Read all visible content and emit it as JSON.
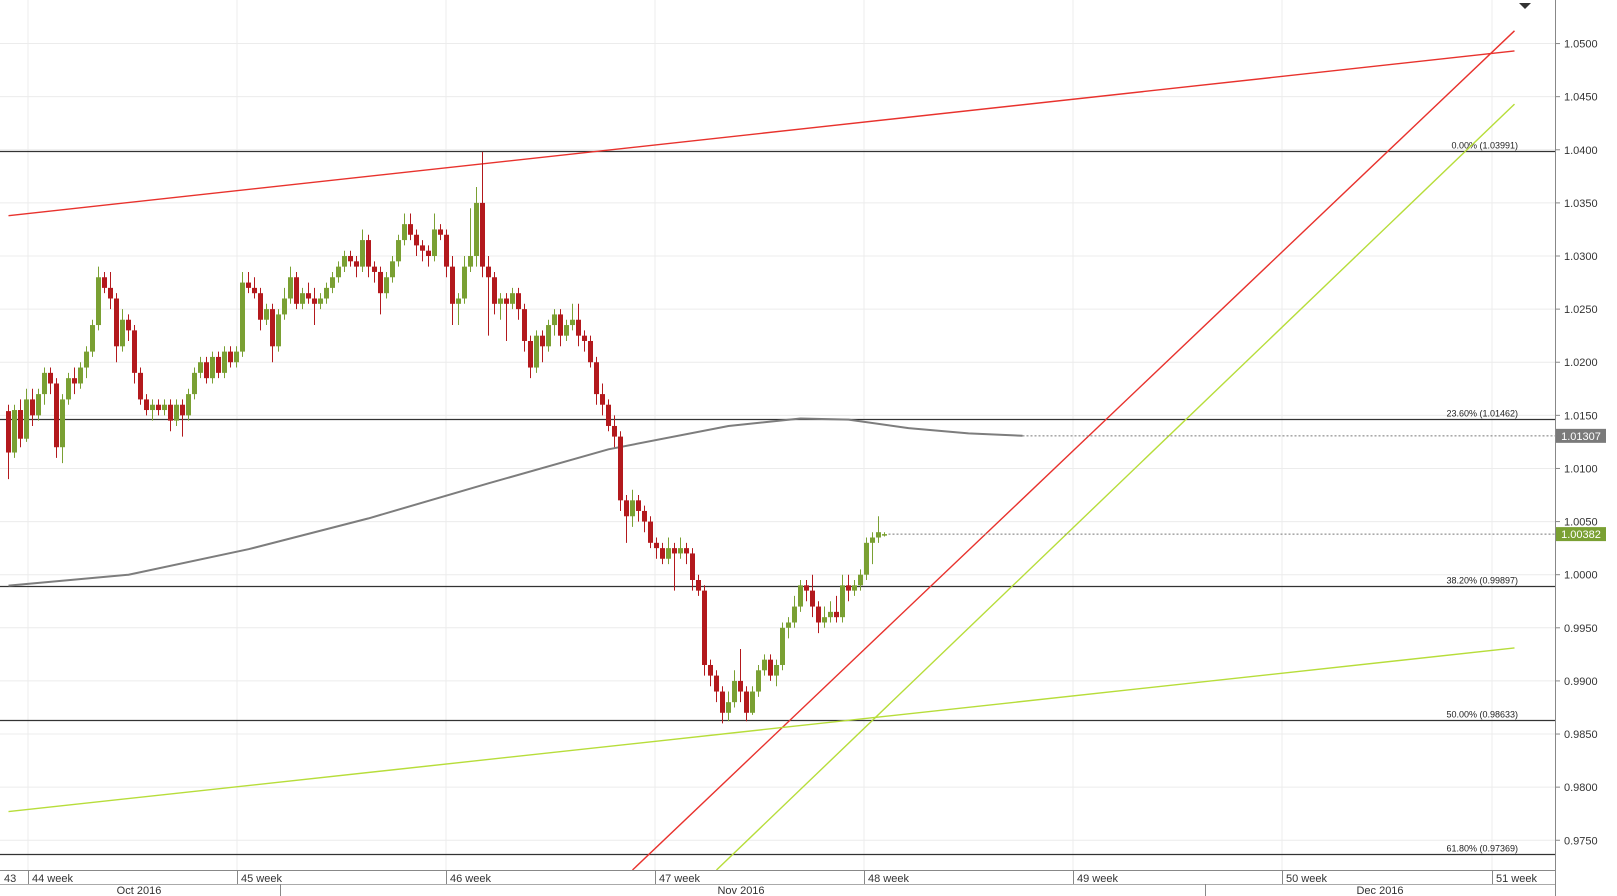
{
  "chart_data": {
    "type": "candlestick",
    "price_axis": {
      "ylim": [
        0.9722,
        1.0541
      ],
      "ticks": [
        "1.0500",
        "1.0450",
        "1.0400",
        "1.0350",
        "1.0300",
        "1.0250",
        "1.0200",
        "1.0150",
        "1.0100",
        "1.0050",
        "1.0000",
        "0.9950",
        "0.9900",
        "0.9850",
        "0.9800",
        "0.9750"
      ]
    },
    "fib_levels": [
      {
        "label": "0.00% (1.03991)",
        "value": 1.03991
      },
      {
        "label": "23.60% (1.01462)",
        "value": 1.01462
      },
      {
        "label": "38.20% (0.99897)",
        "value": 0.99897
      },
      {
        "label": "50.00% (0.98633)",
        "value": 0.98633
      },
      {
        "label": "61.80% (0.97369)",
        "value": 0.97369
      }
    ],
    "badges": [
      {
        "label": "1.01307",
        "value": 1.01307,
        "color": "#7a7a7a"
      },
      {
        "label": "1.00382",
        "value": 1.00382,
        "color": "#7aa033"
      }
    ],
    "week_labels": [
      "43",
      "44 week",
      "45 week",
      "46 week",
      "47 week",
      "48 week",
      "49 week",
      "50 week",
      "51 week"
    ],
    "month_labels": [
      "Oct 2016",
      "Nov 2016",
      "Dec 2016"
    ],
    "moving_average": [
      [
        0,
        0.99897
      ],
      [
        20,
        1.0
      ],
      [
        40,
        1.0024
      ],
      [
        60,
        1.0053
      ],
      [
        80,
        1.0086
      ],
      [
        100,
        1.0118
      ],
      [
        120,
        1.014
      ],
      [
        132,
        1.0147
      ],
      [
        140,
        1.0146
      ],
      [
        150,
        1.0138
      ],
      [
        160,
        1.0133
      ],
      [
        169,
        1.01307
      ]
    ],
    "trendlines": [
      {
        "color": "#e8322d",
        "p1": [
          0,
          1.0338
        ],
        "p2": [
          251,
          1.0493
        ]
      },
      {
        "color": "#e8322d",
        "p1": [
          104,
          0.9722
        ],
        "p2": [
          251,
          1.0512
        ]
      },
      {
        "color": "#b7dd3a",
        "p1": [
          0,
          0.9777
        ],
        "p2": [
          251,
          0.9931
        ]
      },
      {
        "color": "#b7dd3a",
        "p1": [
          118,
          0.9722
        ],
        "p2": [
          251,
          1.0443
        ]
      }
    ],
    "candles": [
      [
        0,
        1.0154,
        1.016,
        1.009,
        1.0115
      ],
      [
        1,
        1.0115,
        1.016,
        1.011,
        1.0155
      ],
      [
        2,
        1.0155,
        1.0165,
        1.012,
        1.0128
      ],
      [
        3,
        1.0128,
        1.0175,
        1.0125,
        1.0165
      ],
      [
        4,
        1.0165,
        1.0175,
        1.014,
        1.015
      ],
      [
        5,
        1.015,
        1.0175,
        1.0145,
        1.017
      ],
      [
        6,
        1.017,
        1.0195,
        1.016,
        1.019
      ],
      [
        7,
        1.019,
        1.0195,
        1.017,
        1.018
      ],
      [
        8,
        1.018,
        1.0185,
        1.011,
        1.012
      ],
      [
        9,
        1.012,
        1.017,
        1.0105,
        1.0165
      ],
      [
        10,
        1.0165,
        1.019,
        1.016,
        1.0185
      ],
      [
        11,
        1.0185,
        1.0195,
        1.017,
        1.018
      ],
      [
        12,
        1.018,
        1.02,
        1.0175,
        1.0195
      ],
      [
        13,
        1.0195,
        1.0215,
        1.0185,
        1.021
      ],
      [
        14,
        1.021,
        1.024,
        1.0205,
        1.0235
      ],
      [
        15,
        1.0235,
        1.029,
        1.023,
        1.028
      ],
      [
        16,
        1.028,
        1.0285,
        1.0265,
        1.027
      ],
      [
        17,
        1.027,
        1.0285,
        1.025,
        1.026
      ],
      [
        18,
        1.026,
        1.0265,
        1.02,
        1.0215
      ],
      [
        19,
        1.0215,
        1.025,
        1.021,
        1.024
      ],
      [
        20,
        1.024,
        1.0245,
        1.022,
        1.023
      ],
      [
        21,
        1.023,
        1.0235,
        1.018,
        1.019
      ],
      [
        22,
        1.019,
        1.0195,
        1.016,
        1.0165
      ],
      [
        23,
        1.0165,
        1.017,
        1.015,
        1.0155
      ],
      [
        24,
        1.0155,
        1.0165,
        1.0145,
        1.016
      ],
      [
        25,
        1.016,
        1.0165,
        1.015,
        1.0155
      ],
      [
        26,
        1.0155,
        1.0165,
        1.015,
        1.016
      ],
      [
        27,
        1.016,
        1.0165,
        1.0135,
        1.0145
      ],
      [
        28,
        1.0145,
        1.0165,
        1.014,
        1.016
      ],
      [
        29,
        1.016,
        1.0165,
        1.013,
        1.015
      ],
      [
        30,
        1.015,
        1.0175,
        1.0145,
        1.017
      ],
      [
        31,
        1.017,
        1.0195,
        1.0165,
        1.019
      ],
      [
        32,
        1.019,
        1.0205,
        1.0185,
        1.02
      ],
      [
        33,
        1.02,
        1.0205,
        1.018,
        1.0185
      ],
      [
        34,
        1.0185,
        1.021,
        1.018,
        1.0205
      ],
      [
        35,
        1.0205,
        1.021,
        1.0185,
        1.019
      ],
      [
        36,
        1.019,
        1.0215,
        1.0185,
        1.021
      ],
      [
        37,
        1.021,
        1.0215,
        1.0195,
        1.02
      ],
      [
        38,
        1.02,
        1.0215,
        1.0195,
        1.021
      ],
      [
        39,
        1.021,
        1.0285,
        1.0205,
        1.0275
      ],
      [
        40,
        1.0275,
        1.0285,
        1.0265,
        1.027
      ],
      [
        41,
        1.027,
        1.028,
        1.026,
        1.0265
      ],
      [
        42,
        1.0265,
        1.027,
        1.023,
        1.024
      ],
      [
        43,
        1.024,
        1.0255,
        1.0235,
        1.025
      ],
      [
        44,
        1.025,
        1.0255,
        1.02,
        1.0215
      ],
      [
        45,
        1.0215,
        1.025,
        1.021,
        1.0245
      ],
      [
        46,
        1.0245,
        1.027,
        1.024,
        1.026
      ],
      [
        47,
        1.026,
        1.029,
        1.0255,
        1.028
      ],
      [
        48,
        1.028,
        1.0285,
        1.025,
        1.0255
      ],
      [
        49,
        1.0255,
        1.027,
        1.025,
        1.0265
      ],
      [
        50,
        1.0265,
        1.0275,
        1.0255,
        1.026
      ],
      [
        51,
        1.026,
        1.027,
        1.0235,
        1.0255
      ],
      [
        52,
        1.0255,
        1.0265,
        1.025,
        1.026
      ],
      [
        53,
        1.026,
        1.0275,
        1.0255,
        1.027
      ],
      [
        54,
        1.027,
        1.0285,
        1.0265,
        1.028
      ],
      [
        55,
        1.028,
        1.0295,
        1.0275,
        1.029
      ],
      [
        56,
        1.029,
        1.0305,
        1.0285,
        1.03
      ],
      [
        57,
        1.03,
        1.0305,
        1.029,
        1.0295
      ],
      [
        58,
        1.0295,
        1.03,
        1.028,
        1.029
      ],
      [
        59,
        1.029,
        1.0325,
        1.0285,
        1.0315
      ],
      [
        60,
        1.0315,
        1.032,
        1.028,
        1.029
      ],
      [
        61,
        1.029,
        1.0295,
        1.0275,
        1.0285
      ],
      [
        62,
        1.0285,
        1.029,
        1.0245,
        1.0265
      ],
      [
        63,
        1.0265,
        1.0285,
        1.026,
        1.028
      ],
      [
        64,
        1.028,
        1.03,
        1.0275,
        1.0295
      ],
      [
        65,
        1.0295,
        1.032,
        1.029,
        1.0315
      ],
      [
        66,
        1.0315,
        1.034,
        1.031,
        1.033
      ],
      [
        67,
        1.033,
        1.034,
        1.0315,
        1.032
      ],
      [
        68,
        1.032,
        1.0325,
        1.03,
        1.031
      ],
      [
        69,
        1.031,
        1.0315,
        1.0295,
        1.0305
      ],
      [
        70,
        1.0305,
        1.031,
        1.029,
        1.03
      ],
      [
        71,
        1.03,
        1.034,
        1.0295,
        1.0325
      ],
      [
        72,
        1.0325,
        1.033,
        1.0315,
        1.032
      ],
      [
        73,
        1.032,
        1.0325,
        1.028,
        1.029
      ],
      [
        74,
        1.029,
        1.03,
        1.0235,
        1.0255
      ],
      [
        75,
        1.0255,
        1.0265,
        1.0235,
        1.026
      ],
      [
        76,
        1.026,
        1.03,
        1.0255,
        1.029
      ],
      [
        77,
        1.029,
        1.0345,
        1.0285,
        1.03
      ],
      [
        78,
        1.03,
        1.0365,
        1.029,
        1.035
      ],
      [
        79,
        1.035,
        1.0398,
        1.028,
        1.029
      ],
      [
        80,
        1.029,
        1.03,
        1.0225,
        1.028
      ],
      [
        81,
        1.028,
        1.0285,
        1.0245,
        1.0255
      ],
      [
        82,
        1.0255,
        1.0265,
        1.024,
        1.026
      ],
      [
        83,
        1.026,
        1.0265,
        1.022,
        1.0255
      ],
      [
        84,
        1.0255,
        1.027,
        1.025,
        1.0265
      ],
      [
        85,
        1.0265,
        1.027,
        1.024,
        1.025
      ],
      [
        86,
        1.025,
        1.0255,
        1.021,
        1.022
      ],
      [
        87,
        1.022,
        1.0225,
        1.0185,
        1.0195
      ],
      [
        88,
        1.0195,
        1.023,
        1.019,
        1.0225
      ],
      [
        89,
        1.0225,
        1.023,
        1.02,
        1.0215
      ],
      [
        90,
        1.0215,
        1.024,
        1.021,
        1.0235
      ],
      [
        91,
        1.0235,
        1.025,
        1.0225,
        1.0245
      ],
      [
        92,
        1.0245,
        1.025,
        1.0215,
        1.0225
      ],
      [
        93,
        1.0225,
        1.024,
        1.022,
        1.0235
      ],
      [
        94,
        1.0235,
        1.0255,
        1.023,
        1.024
      ],
      [
        95,
        1.024,
        1.0255,
        1.0215,
        1.0225
      ],
      [
        96,
        1.0225,
        1.023,
        1.021,
        1.022
      ],
      [
        97,
        1.022,
        1.0225,
        1.0195,
        1.02
      ],
      [
        98,
        1.02,
        1.0205,
        1.016,
        1.017
      ],
      [
        99,
        1.017,
        1.018,
        1.015,
        1.016
      ],
      [
        100,
        1.016,
        1.0165,
        1.0135,
        1.014
      ],
      [
        101,
        1.014,
        1.015,
        1.012,
        1.013
      ],
      [
        102,
        1.013,
        1.0135,
        1.006,
        1.007
      ],
      [
        103,
        1.007,
        1.0075,
        1.003,
        1.0055
      ],
      [
        104,
        1.0055,
        1.008,
        1.0045,
        1.007
      ],
      [
        105,
        1.007,
        1.0075,
        1.005,
        1.006
      ],
      [
        106,
        1.006,
        1.0065,
        1.004,
        1.005
      ],
      [
        107,
        1.005,
        1.0055,
        1.0025,
        1.003
      ],
      [
        108,
        1.003,
        1.0035,
        1.0015,
        1.0025
      ],
      [
        109,
        1.0025,
        1.003,
        1.001,
        1.0015
      ],
      [
        110,
        1.0015,
        1.0035,
        1.001,
        1.0025
      ],
      [
        111,
        1.0025,
        1.003,
        0.9985,
        1.002
      ],
      [
        112,
        1.002,
        1.0035,
        1.0015,
        1.0025
      ],
      [
        113,
        1.0025,
        1.003,
        1.001,
        1.002
      ],
      [
        114,
        1.002,
        1.0025,
        0.9985,
        0.9995
      ],
      [
        115,
        0.9995,
        1.0,
        0.998,
        0.9985
      ],
      [
        116,
        0.9985,
        0.999,
        0.9905,
        0.9915
      ],
      [
        117,
        0.9915,
        0.992,
        0.9895,
        0.9905
      ],
      [
        118,
        0.9905,
        0.991,
        0.988,
        0.989
      ],
      [
        119,
        0.989,
        0.9895,
        0.986,
        0.987
      ],
      [
        120,
        0.987,
        0.989,
        0.9862,
        0.988
      ],
      [
        121,
        0.988,
        0.991,
        0.9875,
        0.99
      ],
      [
        122,
        0.99,
        0.993,
        0.988,
        0.989
      ],
      [
        123,
        0.989,
        0.9895,
        0.9862,
        0.987
      ],
      [
        124,
        0.987,
        0.9895,
        0.9868,
        0.989
      ],
      [
        125,
        0.989,
        0.9915,
        0.9885,
        0.991
      ],
      [
        126,
        0.991,
        0.9925,
        0.9905,
        0.992
      ],
      [
        127,
        0.992,
        0.9925,
        0.99,
        0.9905
      ],
      [
        128,
        0.9905,
        0.992,
        0.9895,
        0.9915
      ],
      [
        129,
        0.9915,
        0.9955,
        0.991,
        0.995
      ],
      [
        130,
        0.995,
        0.996,
        0.994,
        0.9955
      ],
      [
        131,
        0.9955,
        0.998,
        0.995,
        0.997
      ],
      [
        132,
        0.997,
        0.9995,
        0.9965,
        0.999
      ],
      [
        133,
        0.999,
        0.9995,
        0.9975,
        0.9985
      ],
      [
        134,
        0.9985,
        1.0,
        0.996,
        0.997
      ],
      [
        135,
        0.997,
        0.9975,
        0.9945,
        0.9955
      ],
      [
        136,
        0.9955,
        0.997,
        0.995,
        0.996
      ],
      [
        137,
        0.996,
        0.9975,
        0.9955,
        0.9965
      ],
      [
        138,
        0.9965,
        0.998,
        0.9955,
        0.996
      ],
      [
        139,
        0.996,
        1.0,
        0.9955,
        0.999
      ],
      [
        140,
        0.999,
        1.0,
        0.9975,
        0.9985
      ],
      [
        141,
        0.9985,
        0.9995,
        0.998,
        0.999
      ],
      [
        142,
        0.999,
        1.0005,
        0.9985,
        1.0
      ],
      [
        143,
        1.0,
        1.0035,
        0.9995,
        1.003
      ],
      [
        144,
        1.003,
        1.004,
        1.001,
        1.0035
      ],
      [
        145,
        1.0035,
        1.0055,
        1.003,
        1.004
      ],
      [
        146,
        1.0038,
        1.004,
        1.0036,
        1.00382
      ]
    ]
  }
}
